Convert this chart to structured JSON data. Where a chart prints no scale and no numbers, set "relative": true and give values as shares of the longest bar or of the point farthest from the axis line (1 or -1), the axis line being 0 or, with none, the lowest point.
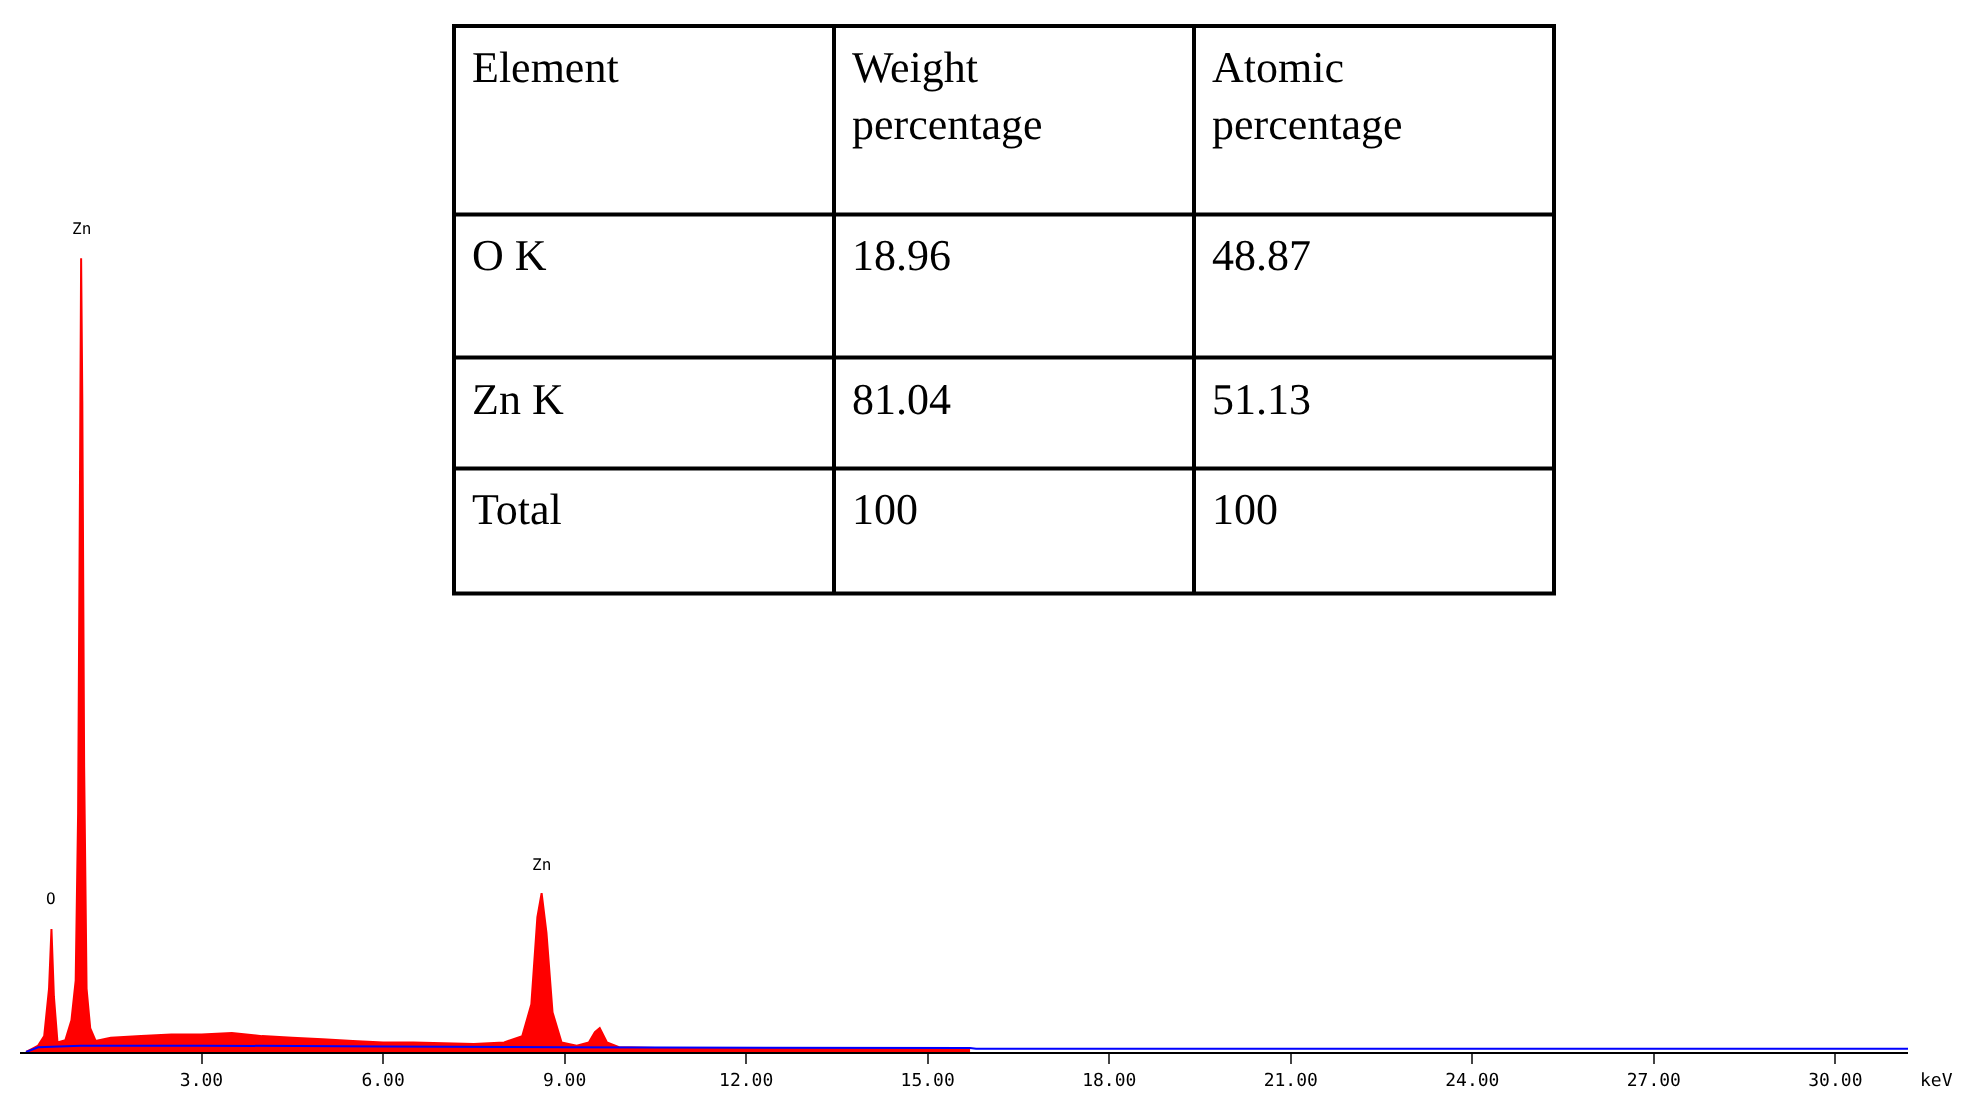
{
  "chart_data": [
    {
      "type": "area",
      "relative": true,
      "xlabel": "keV",
      "xlim": [
        0,
        31.2
      ],
      "xticks": [
        {
          "value": 3,
          "label": "3.00"
        },
        {
          "value": 6,
          "label": "6.00"
        },
        {
          "value": 9,
          "label": "9.00"
        },
        {
          "value": 12,
          "label": "12.00"
        },
        {
          "value": 15,
          "label": "15.00"
        },
        {
          "value": 18,
          "label": "18.00"
        },
        {
          "value": 21,
          "label": "21.00"
        },
        {
          "value": 24,
          "label": "24.00"
        },
        {
          "value": 27,
          "label": "27.00"
        },
        {
          "value": 30,
          "label": "30.00"
        }
      ],
      "series": [
        {
          "type": "area",
          "color": "#ff0000",
          "x": [
            0.1,
            0.2,
            0.3,
            0.4,
            0.48,
            0.52,
            0.56,
            0.62,
            0.75,
            0.85,
            0.92,
            0.96,
            0.99,
            1.01,
            1.03,
            1.06,
            1.1,
            1.16,
            1.25,
            1.5,
            2.0,
            2.5,
            3.0,
            3.5,
            4.0,
            4.5,
            5.0,
            5.5,
            6.0,
            6.5,
            7.0,
            7.5,
            8.0,
            8.3,
            8.45,
            8.55,
            8.62,
            8.7,
            8.8,
            8.95,
            9.2,
            9.4,
            9.5,
            9.58,
            9.7,
            9.9,
            10.5,
            12,
            14,
            15.7
          ],
          "values": [
            0.0,
            0.004,
            0.008,
            0.02,
            0.08,
            0.155,
            0.07,
            0.012,
            0.015,
            0.04,
            0.09,
            0.3,
            0.7,
            1.0,
            0.82,
            0.36,
            0.08,
            0.03,
            0.014,
            0.018,
            0.02,
            0.022,
            0.022,
            0.024,
            0.02,
            0.018,
            0.016,
            0.014,
            0.012,
            0.012,
            0.011,
            0.01,
            0.012,
            0.02,
            0.06,
            0.17,
            0.2,
            0.15,
            0.05,
            0.012,
            0.008,
            0.012,
            0.025,
            0.03,
            0.012,
            0.006,
            0.005,
            0.004,
            0.004,
            0.004
          ]
        },
        {
          "type": "line",
          "color": "#0000ff",
          "x": [
            0.1,
            0.3,
            1.0,
            3,
            6,
            9,
            15.7,
            15.8,
            31.2
          ],
          "values": [
            0,
            0.006,
            0.008,
            0.008,
            0.007,
            0.006,
            0.005,
            0.004,
            0.004
          ]
        }
      ],
      "annotations": [
        {
          "text": "O",
          "x": 0.52,
          "y": 0.155
        },
        {
          "text": "Zn",
          "x": 1.01,
          "y": 1.0
        },
        {
          "text": "Zn",
          "x": 8.62,
          "y": 0.2
        }
      ]
    },
    {
      "type": "other",
      "annotations": [
        "Element",
        "Weight percentage",
        "Atomic percentage",
        "O K",
        "18.96",
        "48.87",
        "Zn K",
        "81.04",
        "51.13",
        "Total",
        "100",
        "100"
      ]
    }
  ]
}
